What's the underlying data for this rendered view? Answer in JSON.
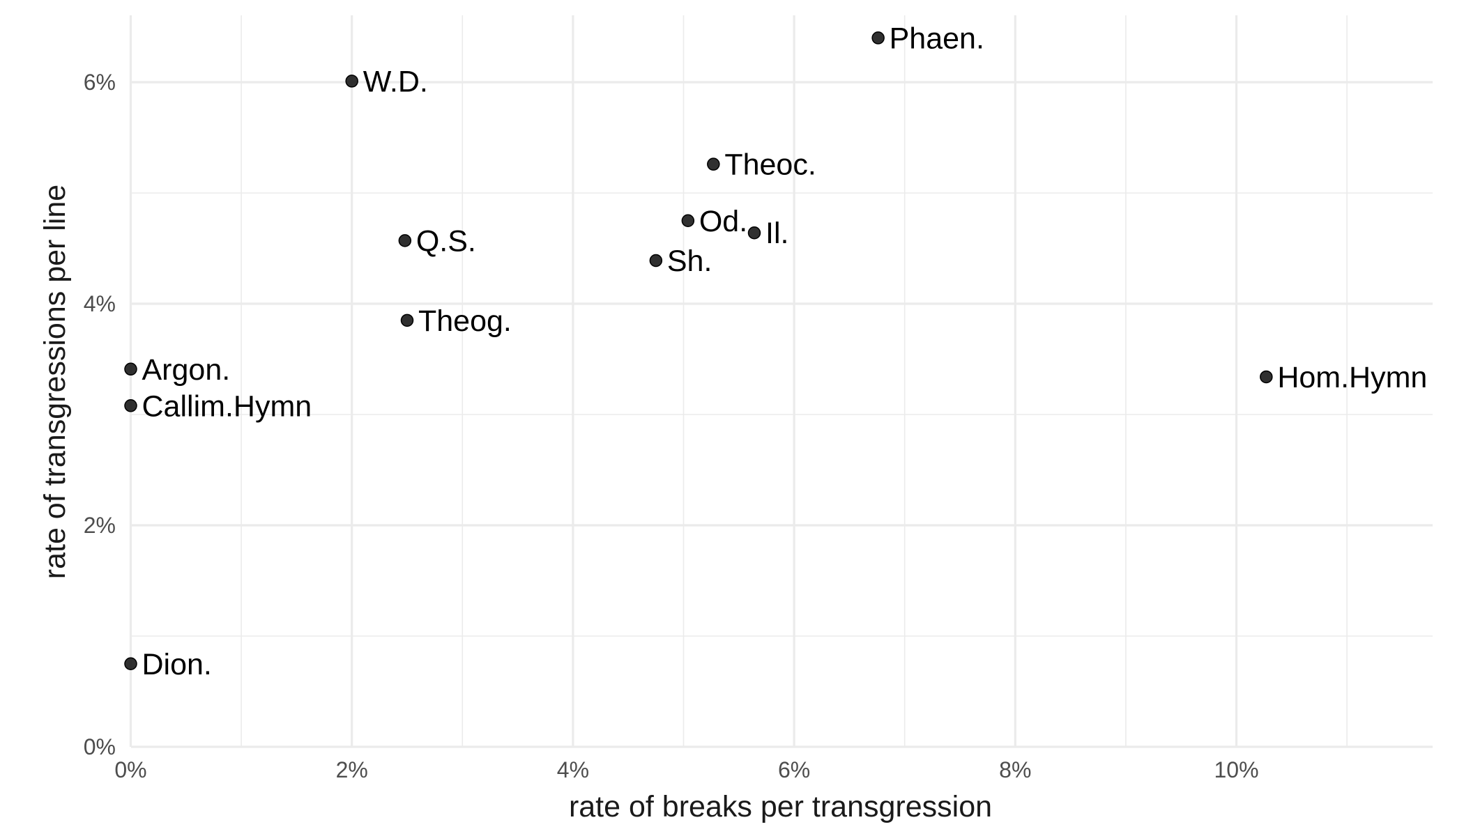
{
  "chart_data": {
    "type": "scatter",
    "xlabel": "rate of breaks per transgression",
    "ylabel": "rate of transgressions per line",
    "xlim": [
      0,
      0.1175
    ],
    "ylim": [
      0,
      0.066
    ],
    "x_ticks": [
      0,
      0.02,
      0.04,
      0.06,
      0.08,
      0.1
    ],
    "x_tick_labels": [
      "0%",
      "2%",
      "4%",
      "6%",
      "8%",
      "10%"
    ],
    "y_ticks": [
      0,
      0.02,
      0.04,
      0.06
    ],
    "y_tick_labels": [
      "0%",
      "2%",
      "4%",
      "6%"
    ],
    "grid": true,
    "point_color": "#1a1a1a",
    "points": [
      {
        "label": "Phaen.",
        "x": 0.0676,
        "y": 0.064
      },
      {
        "label": "W.D.",
        "x": 0.02,
        "y": 0.0601
      },
      {
        "label": "Theoc.",
        "x": 0.0527,
        "y": 0.0526
      },
      {
        "label": "Od.",
        "x": 0.0504,
        "y": 0.0475
      },
      {
        "label": "Il.",
        "x": 0.0564,
        "y": 0.0464
      },
      {
        "label": "Q.S.",
        "x": 0.0248,
        "y": 0.0457
      },
      {
        "label": "Sh.",
        "x": 0.0475,
        "y": 0.0439
      },
      {
        "label": "Theog.",
        "x": 0.025,
        "y": 0.0385
      },
      {
        "label": "Argon.",
        "x": 0.0,
        "y": 0.0341
      },
      {
        "label": "Hom.Hymn",
        "x": 0.1027,
        "y": 0.0334
      },
      {
        "label": "Callim.Hymn",
        "x": 0.0,
        "y": 0.0308
      },
      {
        "label": "Dion.",
        "x": 0.0,
        "y": 0.0075
      }
    ]
  }
}
